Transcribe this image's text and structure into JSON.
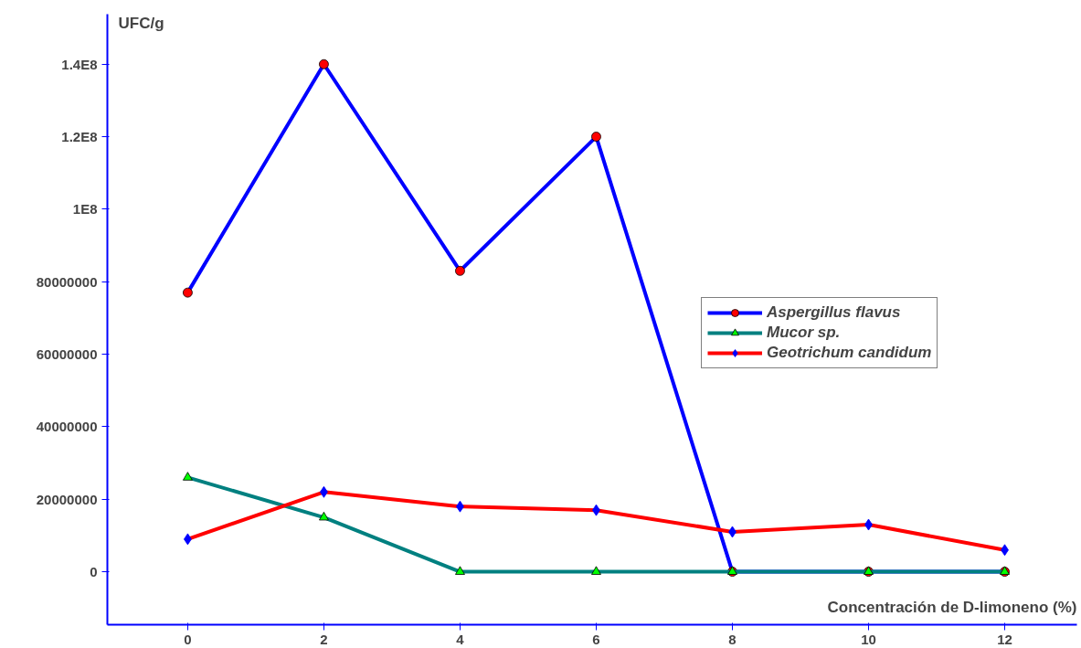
{
  "chart_data": {
    "type": "line",
    "xlabel": "Concentración de D-limoneno (%)",
    "ylabel": "UFC/g",
    "x": [
      0,
      2,
      4,
      6,
      8,
      10,
      12
    ],
    "series": [
      {
        "name": "Aspergillus flavus",
        "color": "#0000ff",
        "marker": "circle",
        "colors": [
          "#ff0000",
          "#ff0000",
          "#ff0000",
          "#ff0000",
          "#ff0000",
          "#ff0000",
          "#ff0000"
        ],
        "values": [
          77000000,
          140000000,
          83000000,
          120000000,
          0,
          0,
          0
        ]
      },
      {
        "name": "Mucor sp.",
        "color": "#008080",
        "marker": "triangle",
        "colors": [
          "#00ff00",
          "#00ff00",
          "#00ff00",
          "#00ff00",
          "#00ff00",
          "#00ff00",
          "#00ff00"
        ],
        "values": [
          26000000,
          15000000,
          0,
          0,
          0,
          0,
          0
        ]
      },
      {
        "name": "Geotrichum candidum",
        "color": "#ff0000",
        "marker": "diamond",
        "colors": [
          "#0000ff",
          "#0000ff",
          "#0000ff",
          "#0000ff",
          "#0000ff",
          "#0000ff",
          "#0000ff"
        ],
        "values": [
          9000000,
          22000000,
          18000000,
          17000000,
          11000000,
          13000000,
          6000000
        ]
      }
    ],
    "xlim": [
      -1.18,
      13.06
    ],
    "ylim": [
      -14600000,
      153800000
    ],
    "xticks": [
      0,
      2,
      4,
      6,
      8,
      10,
      12
    ],
    "yticks": [
      0,
      20000000,
      40000000,
      60000000,
      80000000,
      {
        "value": 100000000,
        "label": "1E8"
      },
      {
        "value": 120000000,
        "label": "1.2E8"
      },
      {
        "value": 140000000,
        "label": "1.4E8"
      }
    ],
    "grid": false,
    "legend": "right",
    "line_style": "solid"
  }
}
